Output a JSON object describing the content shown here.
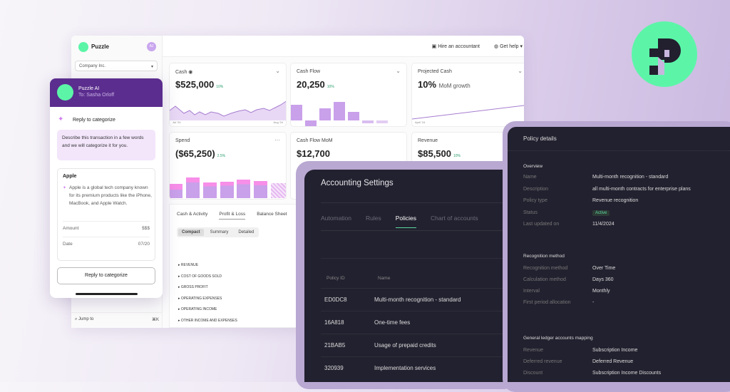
{
  "brand": {
    "name": "Puzzle",
    "avatar": "AJ",
    "accent": "#5cf5a8",
    "purple": "#5b2d8e"
  },
  "sidebar": {
    "company": "Company Inc.",
    "jump_to": "Jump to",
    "shortcut": "⌘K"
  },
  "topbar": {
    "hire": "Hire an accountant",
    "help": "Get help"
  },
  "cards": [
    {
      "label": "Cash",
      "value": "$525,000",
      "change": "10%",
      "x_start": "Jul '24",
      "x_end": "Aug '24"
    },
    {
      "label": "Cash Flow",
      "value": "20,250",
      "change": "10%"
    },
    {
      "label": "Projected Cash",
      "value": "10%",
      "suffix": "MoM growth",
      "x_start": "April '24"
    },
    {
      "label": "Spend",
      "value": "($65,250)",
      "change": "2.5%"
    },
    {
      "label": "Cash Flow MoM",
      "value": "$12,700"
    },
    {
      "label": "Revenue",
      "value": "$85,500",
      "change": "10%"
    }
  ],
  "report": {
    "tabs": [
      "Cash & Activity",
      "Profit & Loss",
      "Balance Sheet"
    ],
    "active_tab": 1,
    "views": [
      "Compact",
      "Summary",
      "Detailed"
    ],
    "active_view": 0,
    "rows": [
      "REVENUE",
      "COST OF GOODS SOLD",
      "GROSS PROFIT",
      "OPERATING EXPENSES",
      "OPERATING INCOME",
      "OTHER INCOME AND EXPENSES"
    ]
  },
  "ai": {
    "title": "Puzzle AI",
    "to": "To: Sasha Orloff",
    "heading": "Reply to categorize",
    "prompt": "Describe this transaction in a few words and we will categorize it for you.",
    "merchant": "Apple",
    "description": "Apple is a global tech company known for its premium products like the iPhone, MacBook, and Apple Watch.",
    "amount_label": "Amount",
    "amount": "$$$",
    "date_label": "Date",
    "date": "07/20",
    "button": "Reply to categorize"
  },
  "settings": {
    "title": "Accounting Settings",
    "tabs": [
      "Automation",
      "Rules",
      "Policies",
      "Chart of accounts"
    ],
    "active_tab": 2,
    "columns": [
      "Policy ID",
      "Name"
    ],
    "rows": [
      {
        "id": "ED0DC8",
        "name": "Multi-month recognition - standard"
      },
      {
        "id": "16A818",
        "name": "One-time fees"
      },
      {
        "id": "21BAB5",
        "name": "Usage of prepaid credits"
      },
      {
        "id": "320939",
        "name": "Implementation services"
      }
    ]
  },
  "policy": {
    "title": "Policy details",
    "overview": {
      "heading": "Overview",
      "fields": [
        {
          "label": "Name",
          "value": "Multi-month recognition - standard"
        },
        {
          "label": "Description",
          "value": "all multi-month contracts for enterprise plans"
        },
        {
          "label": "Policy type",
          "value": "Revenue recognition"
        },
        {
          "label": "Status",
          "value": "Active"
        },
        {
          "label": "Last updated on",
          "value": "11/4/2024"
        }
      ]
    },
    "recognition": {
      "heading": "Recognition method",
      "fields": [
        {
          "label": "Recognition method",
          "value": "Over Time"
        },
        {
          "label": "Calculation method",
          "value": "Days 360"
        },
        {
          "label": "Interval",
          "value": "Monthly"
        },
        {
          "label": "First period allocation",
          "value": "-"
        }
      ]
    },
    "ledger": {
      "heading": "General ledger accounts mapping",
      "fields": [
        {
          "label": "Revenue",
          "value": "Subscription Income"
        },
        {
          "label": "Deferred revenue",
          "value": "Deferred Revenue"
        },
        {
          "label": "Discount",
          "value": "Subscription Income Discounts"
        }
      ]
    }
  }
}
